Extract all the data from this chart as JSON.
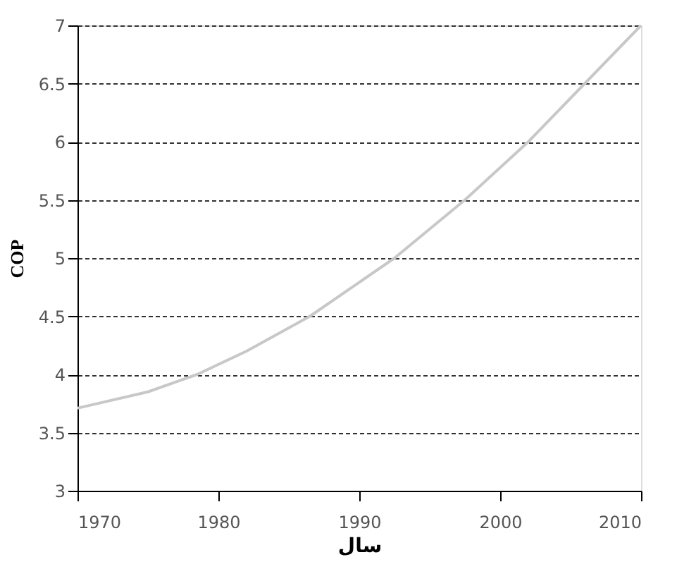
{
  "chart_data": {
    "type": "line",
    "xlabel": "سال",
    "ylabel": "COP",
    "x": [
      1970,
      1975,
      1978.5,
      1982,
      1986.5,
      1992.5,
      1997.5,
      2002,
      2006,
      2010
    ],
    "series": [
      {
        "color": "#c8c8c8",
        "values": [
          3.71,
          3.85,
          4.0,
          4.2,
          4.5,
          5.0,
          5.5,
          6.0,
          6.5,
          7.0
        ]
      }
    ],
    "xlim": [
      1970,
      2010
    ],
    "xticks": [
      1970,
      1980,
      1990,
      2000,
      2010
    ],
    "ylim": [
      3,
      7
    ],
    "yticks": [
      3,
      3.5,
      4,
      4.5,
      5,
      5.5,
      6,
      6.5,
      7
    ],
    "grid": "y",
    "line_style": "solid",
    "marker": "none"
  }
}
